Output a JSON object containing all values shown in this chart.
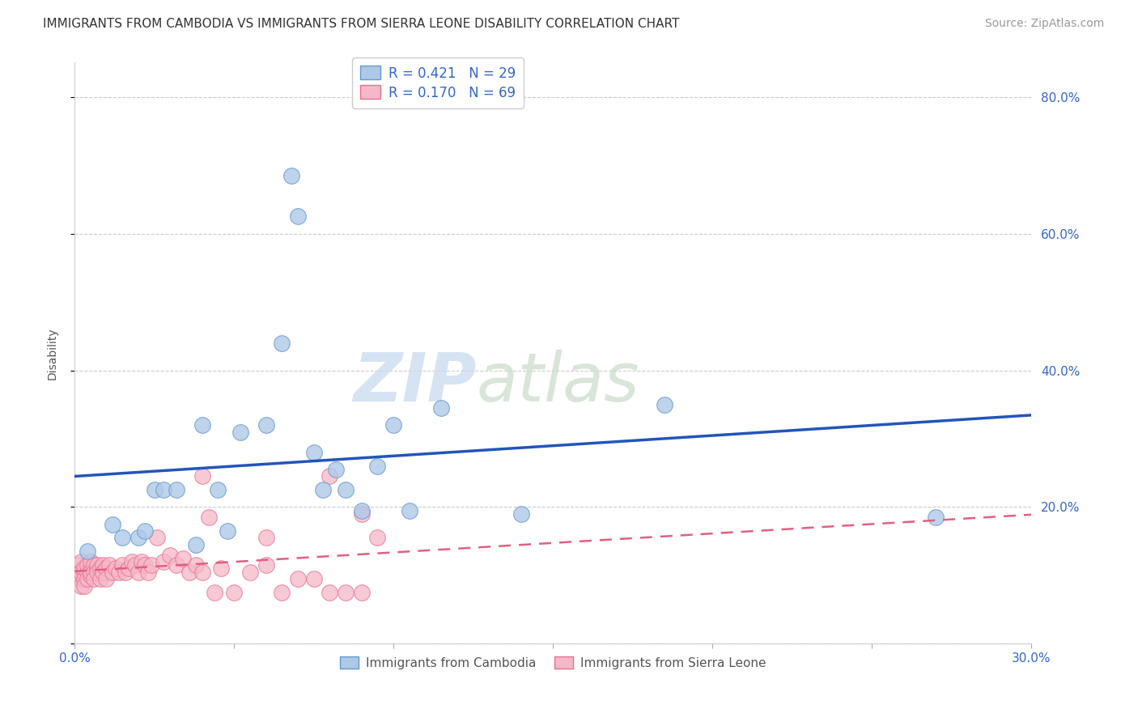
{
  "title": "IMMIGRANTS FROM CAMBODIA VS IMMIGRANTS FROM SIERRA LEONE DISABILITY CORRELATION CHART",
  "source": "Source: ZipAtlas.com",
  "ylabel": "Disability",
  "xlabel": "",
  "xlim": [
    0.0,
    0.3
  ],
  "ylim": [
    0.0,
    0.85
  ],
  "xticks": [
    0.0,
    0.05,
    0.1,
    0.15,
    0.2,
    0.25,
    0.3
  ],
  "xtick_labels": [
    "0.0%",
    "",
    "",
    "",
    "",
    "",
    "30.0%"
  ],
  "yticks": [
    0.0,
    0.2,
    0.4,
    0.6,
    0.8
  ],
  "ytick_labels": [
    "",
    "20.0%",
    "40.0%",
    "60.0%",
    "80.0%"
  ],
  "background_color": "#ffffff",
  "grid_color": "#cccccc",
  "watermark_zip": "ZIP",
  "watermark_atlas": "atlas",
  "cambodia_color": "#aec9e8",
  "cambodia_edge": "#6699cc",
  "sierra_color": "#f5b8c8",
  "sierra_edge": "#e87090",
  "cambodia_line_color": "#2255bb",
  "sierra_line_color": "#e06080",
  "cambodia_scatter_x": [
    0.004,
    0.012,
    0.015,
    0.02,
    0.022,
    0.025,
    0.028,
    0.032,
    0.038,
    0.04,
    0.045,
    0.048,
    0.052,
    0.06,
    0.065,
    0.068,
    0.07,
    0.075,
    0.078,
    0.082,
    0.085,
    0.09,
    0.095,
    0.1,
    0.105,
    0.115,
    0.14,
    0.185,
    0.27
  ],
  "cambodia_scatter_y": [
    0.135,
    0.175,
    0.155,
    0.155,
    0.165,
    0.225,
    0.225,
    0.225,
    0.145,
    0.32,
    0.225,
    0.165,
    0.31,
    0.32,
    0.44,
    0.685,
    0.625,
    0.28,
    0.225,
    0.255,
    0.225,
    0.195,
    0.26,
    0.32,
    0.195,
    0.345,
    0.19,
    0.35,
    0.185
  ],
  "sierra_scatter_x": [
    0.001,
    0.001,
    0.001,
    0.002,
    0.002,
    0.002,
    0.002,
    0.003,
    0.003,
    0.003,
    0.003,
    0.004,
    0.004,
    0.004,
    0.005,
    0.005,
    0.005,
    0.005,
    0.006,
    0.006,
    0.006,
    0.007,
    0.007,
    0.007,
    0.008,
    0.008,
    0.009,
    0.009,
    0.01,
    0.01,
    0.011,
    0.012,
    0.013,
    0.014,
    0.015,
    0.016,
    0.017,
    0.018,
    0.019,
    0.02,
    0.021,
    0.022,
    0.023,
    0.024,
    0.026,
    0.028,
    0.03,
    0.032,
    0.034,
    0.036,
    0.038,
    0.04,
    0.042,
    0.044,
    0.046,
    0.05,
    0.055,
    0.06,
    0.065,
    0.07,
    0.075,
    0.08,
    0.085,
    0.09,
    0.04,
    0.06,
    0.08,
    0.09,
    0.095
  ],
  "sierra_scatter_y": [
    0.115,
    0.095,
    0.105,
    0.095,
    0.105,
    0.12,
    0.085,
    0.105,
    0.095,
    0.11,
    0.085,
    0.105,
    0.115,
    0.095,
    0.11,
    0.1,
    0.12,
    0.105,
    0.115,
    0.105,
    0.095,
    0.11,
    0.115,
    0.105,
    0.11,
    0.095,
    0.115,
    0.105,
    0.11,
    0.095,
    0.115,
    0.105,
    0.11,
    0.105,
    0.115,
    0.105,
    0.11,
    0.12,
    0.115,
    0.105,
    0.12,
    0.115,
    0.105,
    0.115,
    0.155,
    0.12,
    0.13,
    0.115,
    0.125,
    0.105,
    0.115,
    0.105,
    0.185,
    0.075,
    0.11,
    0.075,
    0.105,
    0.115,
    0.075,
    0.095,
    0.095,
    0.075,
    0.075,
    0.075,
    0.245,
    0.155,
    0.245,
    0.19,
    0.155
  ],
  "title_fontsize": 11,
  "source_fontsize": 10,
  "axis_label_fontsize": 10,
  "tick_fontsize": 11,
  "legend_fontsize": 12
}
